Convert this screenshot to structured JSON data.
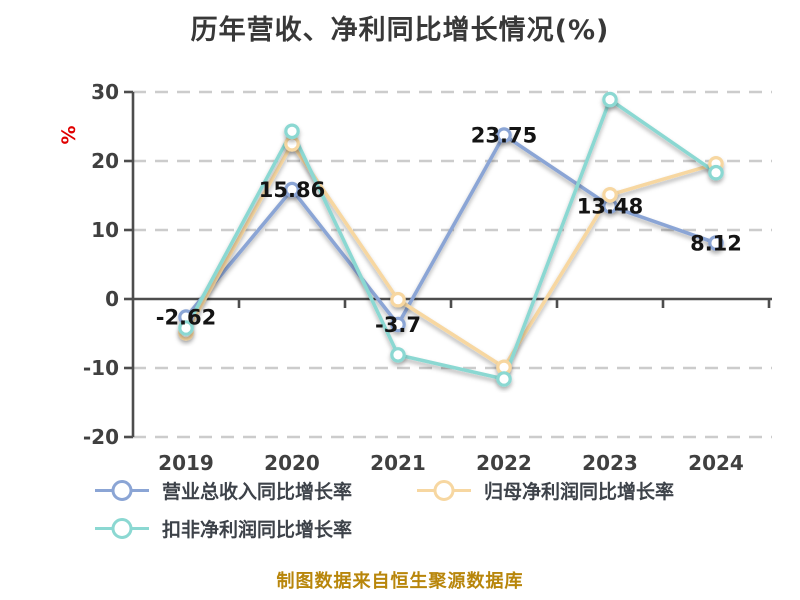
{
  "title": "历年营收、净利同比增长情况(%)",
  "y_axis_unit": "%",
  "footer_note": "制图数据来自恒生聚源数据库",
  "legend": {
    "items": [
      {
        "label": "营业总收入同比增长率",
        "color": "#8ba5d5"
      },
      {
        "label": "归母净利润同比增长率",
        "color": "#f7d7a1"
      },
      {
        "label": "扣非净利润同比增长率",
        "color": "#8bd8d2"
      }
    ]
  },
  "chart_data": {
    "type": "line",
    "title": "历年营收、净利同比增长情况(%)",
    "categories": [
      "2019",
      "2020",
      "2021",
      "2022",
      "2023",
      "2024"
    ],
    "series": [
      {
        "name": "营业总收入同比增长率",
        "color": "#8ba5d5",
        "values": [
          -2.62,
          15.86,
          -3.7,
          23.75,
          13.48,
          8.12
        ],
        "point_labels": [
          "-2.62",
          "15.86",
          "-3.7",
          "23.75",
          "13.48",
          "8.12"
        ],
        "show_labels": true
      },
      {
        "name": "归母净利润同比增长率",
        "color": "#f7d7a1",
        "values": [
          -4.9,
          22.5,
          -0.1,
          -9.9,
          15.1,
          19.6
        ],
        "show_labels": false
      },
      {
        "name": "扣非净利润同比增长率",
        "color": "#8bd8d2",
        "values": [
          -4.2,
          24.3,
          -8.1,
          -11.6,
          28.9,
          18.3
        ],
        "show_labels": false
      }
    ],
    "ylim": [
      -20,
      30
    ],
    "yticks": [
      30,
      20,
      10,
      0,
      -10,
      -20
    ],
    "ylabel": "%",
    "xlabel": "",
    "grid": true,
    "gridline_style": "dashed",
    "legend_position": "bottom",
    "axis_color": "#4d4d4d",
    "grid_color": "#cccccc",
    "data_label_color": "#141414"
  }
}
